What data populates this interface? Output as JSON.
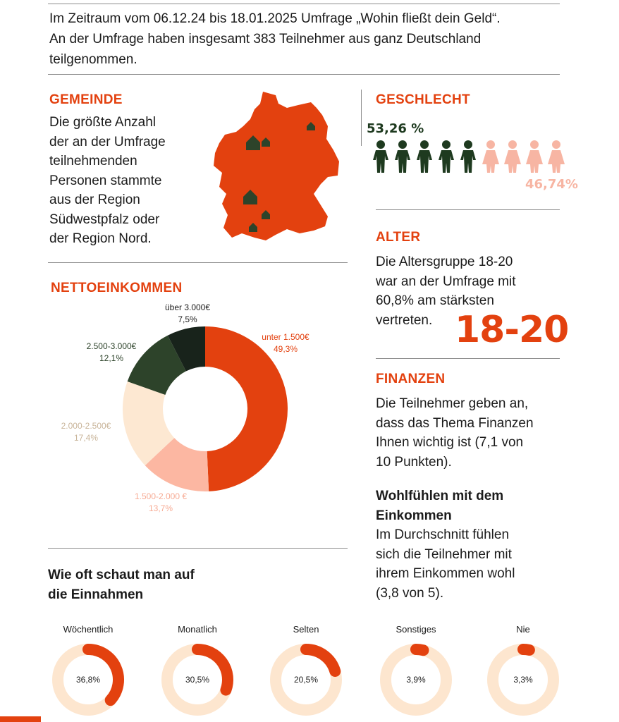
{
  "intro": {
    "line1": "Im Zeitraum vom 06.12.24 bis 18.01.2025 Umfrage „Wohin fließt dein Geld“.",
    "line2": "An der Umfrage haben insgesamt 383 Teilnehmer aus ganz Deutschland",
    "line3": "teilgenommen."
  },
  "gemeinde": {
    "heading": "GEMEINDE",
    "lines": [
      "Die größte Anzahl",
      "der an der Umfrage",
      "teilnehmenden",
      "Personen stammte",
      "aus der Region",
      "Südwestpfalz oder",
      "der Region Nord."
    ]
  },
  "geschlecht": {
    "heading": "GESCHLECHT",
    "group_a_label": "53,26 %",
    "group_b_label": "46,74%",
    "group_a_color": "#1e3a1f",
    "group_b_color": "#f7b5a3"
  },
  "alter": {
    "heading": "ALTER",
    "lines": [
      "Die Altersgruppe 18-20",
      "war an der Umfrage mit",
      "60,8% am stärksten",
      "vertreten."
    ],
    "big_label": "18-20"
  },
  "finanzen": {
    "heading": "FINANZEN",
    "lines": [
      "Die Teilnehmer geben an,",
      "dass das Thema Finanzen",
      "Ihnen wichtig ist (7,1 von",
      "10 Punkten)."
    ]
  },
  "wohlfuehlen": {
    "heading_lines": [
      "Wohlfühlen mit dem",
      "Einkommen"
    ],
    "lines": [
      "Im Durchschnitt fühlen",
      "sich die Teilnehmer mit",
      "ihrem Einkommen wohl",
      "(3,8 von 5)."
    ]
  },
  "colors": {
    "accent": "#e3410f",
    "dark_green": "#2d432a",
    "darkest": "#18231b",
    "peach": "#fcb7a2",
    "cream": "#fde8d2",
    "ring_track": "#fde6cf"
  },
  "chart_data": [
    {
      "type": "pie",
      "title": "NETTOEINKOMMEN",
      "donut": true,
      "categories": [
        "unter 1.500€",
        "1.500-2.000 €",
        "2.000-2.500€",
        "2.500-3.000€",
        "über 3.000€"
      ],
      "values": [
        49.3,
        13.7,
        17.4,
        12.1,
        7.5
      ],
      "value_labels": [
        "49,3%",
        "13,7%",
        "17,4%",
        "12,1%",
        "7,5%"
      ],
      "colors": [
        "#e3410f",
        "#fcb7a2",
        "#fde8d2",
        "#2d432a",
        "#18231b"
      ]
    },
    {
      "type": "pie",
      "title_lines": [
        "Wie oft schaut man auf",
        "die Einnahmen"
      ],
      "donut": true,
      "categories": [
        "Wöchentlich",
        "Monatlich",
        "Selten",
        "Sonstiges",
        "Nie"
      ],
      "values": [
        36.8,
        30.5,
        20.5,
        3.9,
        3.3
      ],
      "value_labels": [
        "36,8%",
        "30,5%",
        "20,5%",
        "3,9%",
        "3,3%"
      ]
    }
  ]
}
